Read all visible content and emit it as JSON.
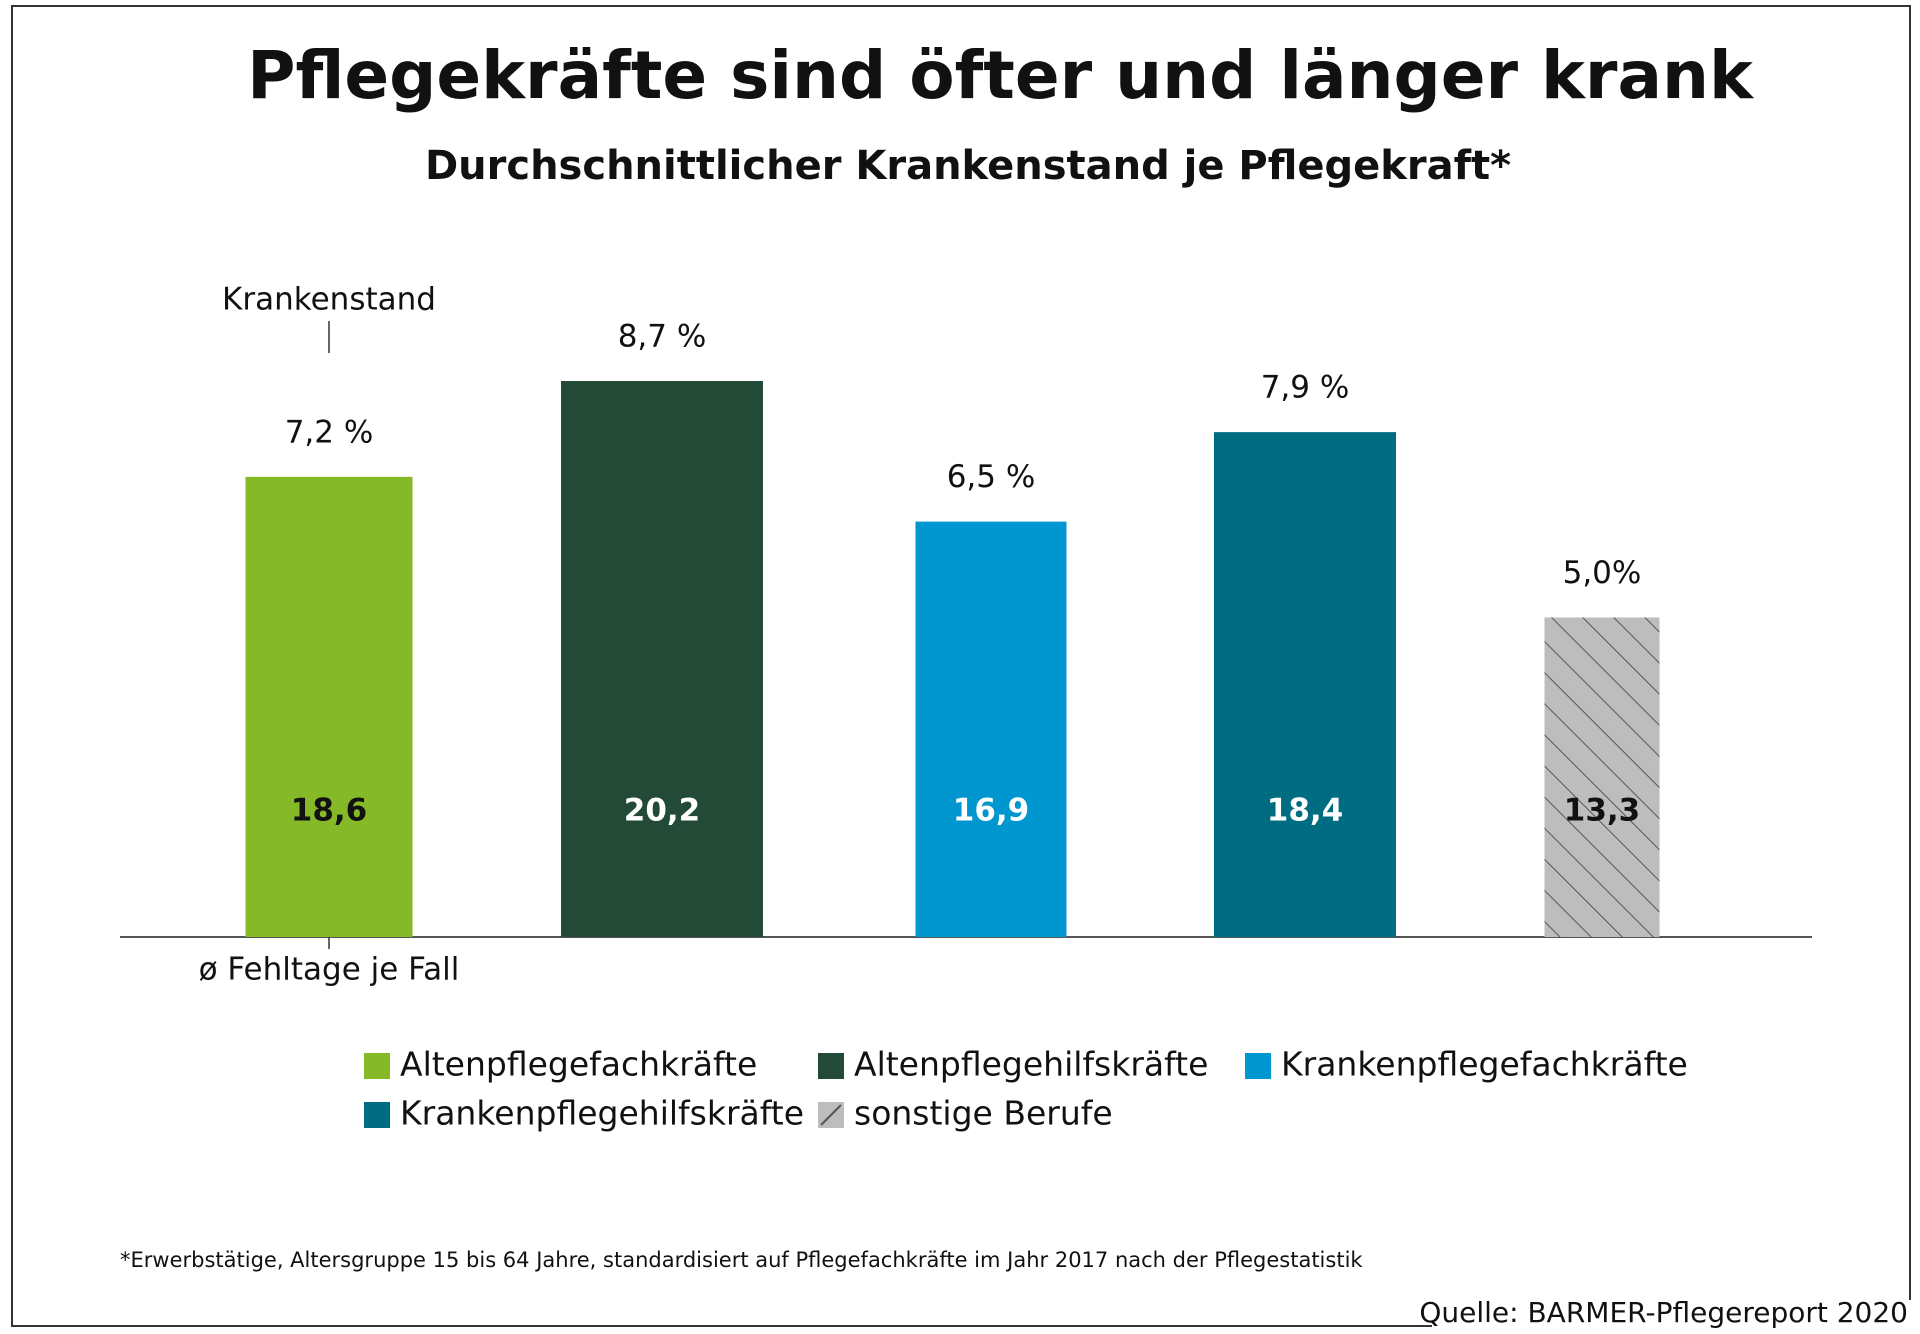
{
  "chart_data": {
    "type": "bar",
    "title": "Pflegekräfte sind öfter und länger krank",
    "subtitle": "Durchschnittlicher Krankenstand je Pflegekraft*",
    "categories": [
      "Altenpflegefachkräfte",
      "Altenpflegehilfskräfte",
      "Krankenpflegefachkräfte",
      "Krankenpflegehilfskräfte",
      "sonstige Berufe"
    ],
    "colors": [
      "#86b928",
      "#224a37",
      "#0096cf",
      "#006c82",
      "#bdbdbd"
    ],
    "hatch": [
      false,
      false,
      false,
      false,
      true
    ],
    "label_colors": [
      "#111111",
      "#ffffff",
      "#ffffff",
      "#ffffff",
      "#111111"
    ],
    "series": [
      {
        "name": "Krankenstand",
        "values": [
          7.2,
          8.7,
          6.5,
          7.9,
          5.0
        ],
        "value_labels": [
          "7,2 %",
          "8,7 %",
          "6,5 %",
          "7,9 %",
          "5,0%"
        ]
      },
      {
        "name": "ø Fehltage je Fall",
        "values": [
          18.6,
          20.2,
          16.9,
          18.4,
          13.3
        ],
        "value_labels": [
          "18,6",
          "20,2",
          "16,9",
          "18,4",
          "13,3"
        ]
      }
    ],
    "footnote": "*Erwerbstätige, Altersgruppe 15 bis 64 Jahre, standardisiert auf Pflegefachkräfte im Jahr 2017 nach der Pflegestatistik",
    "source": "Quelle: BARMER-Pflegereport 2020"
  }
}
